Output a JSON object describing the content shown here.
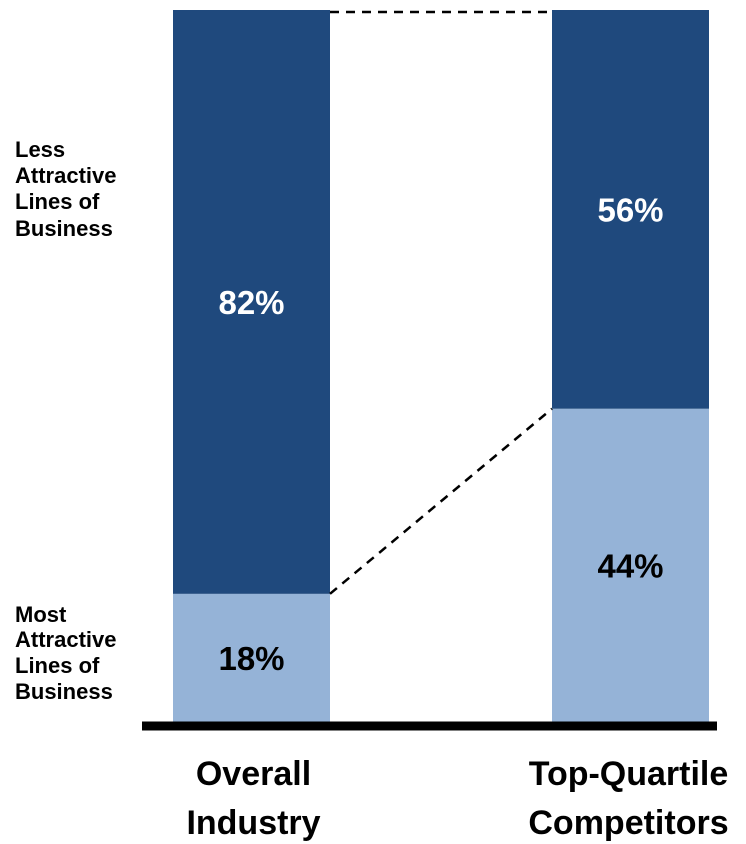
{
  "chart_data": {
    "type": "bar",
    "stacked": true,
    "percent_stacked": true,
    "categories": [
      "Overall Industry",
      "Top-Quartile Competitors"
    ],
    "category_lines": [
      [
        "Overall",
        "Industry"
      ],
      [
        "Top-Quartile",
        "Competitors"
      ]
    ],
    "series": [
      {
        "name": "Most Attractive Lines of Business",
        "name_lines": [
          "Most",
          "Attractive",
          "Lines of",
          "Business"
        ],
        "values": [
          18,
          44
        ],
        "labels": [
          "18%",
          "44%"
        ],
        "color": "#95b3d7",
        "label_color": "#000000"
      },
      {
        "name": "Less Attractive Lines of Business",
        "name_lines": [
          "Less",
          "Attractive",
          "Lines of",
          "Business"
        ],
        "values": [
          82,
          56
        ],
        "labels": [
          "82%",
          "56%"
        ],
        "color": "#1f497d",
        "label_color": "#ffffff"
      }
    ],
    "ylim": [
      0,
      100
    ],
    "connector_lines": true,
    "grid": false,
    "title": "",
    "xlabel": "",
    "ylabel": ""
  }
}
